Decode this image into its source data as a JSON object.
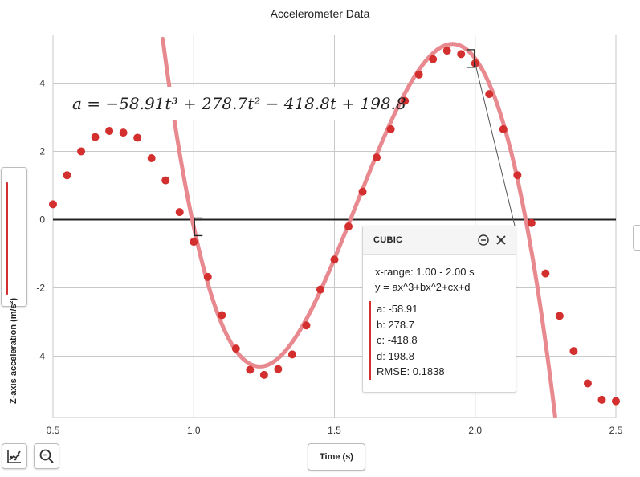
{
  "chart_title": "Accelerometer Data",
  "equation": "a = −58.91t³ + 278.7t² − 418.8t + 198.8",
  "y_axis_button_label": "Z-axis acceleration (m/s²)",
  "x_axis_button_label": "Time (s)",
  "toolbar": {
    "fit_icon": "graph-fit-icon",
    "zoom_icon": "zoom-icon"
  },
  "fit_panel": {
    "title": "CUBIC",
    "x_range": "x-range: 1.00 - 2.00 s",
    "formula": "y = ax^3+bx^2+cx+d",
    "params": [
      "a: -58.91",
      "b: 278.7",
      "c: -418.8",
      "d: 198.8",
      "RMSE: 0.1838"
    ]
  },
  "colors": {
    "points": "#d32f2f",
    "fit_curve": "#e8898f",
    "zero_line": "#222222",
    "grid": "#c8c8c8"
  },
  "chart_data": {
    "type": "scatter",
    "title": "Accelerometer Data",
    "xlabel": "Time (s)",
    "ylabel": "Z-axis acceleration (m/s²)",
    "xlim": [
      0.5,
      2.5
    ],
    "ylim": [
      -5.8,
      5.4
    ],
    "x_ticks": [
      "0.5",
      "1.0",
      "1.5",
      "2.0",
      "2.5"
    ],
    "y_ticks": [
      "-4",
      "-2",
      "0",
      "2",
      "4"
    ],
    "grid": true,
    "series": [
      {
        "x": [
          0.5,
          0.55,
          0.6,
          0.65,
          0.7,
          0.75,
          0.8,
          0.85,
          0.9,
          0.95,
          1.0,
          1.05,
          1.1,
          1.15,
          1.2,
          1.25,
          1.3,
          1.35,
          1.4,
          1.45,
          1.5,
          1.55,
          1.6,
          1.65,
          1.7,
          1.75,
          1.8,
          1.85,
          1.9,
          1.95,
          2.0,
          2.05,
          2.1,
          2.15,
          2.2,
          2.25,
          2.3,
          2.35,
          2.4,
          2.45,
          2.5
        ],
        "y": [
          0.45,
          1.3,
          2.0,
          2.42,
          2.6,
          2.55,
          2.4,
          1.8,
          1.15,
          0.22,
          -0.65,
          -1.68,
          -2.8,
          -3.78,
          -4.4,
          -4.55,
          -4.38,
          -3.95,
          -3.1,
          -2.05,
          -1.17,
          -0.2,
          0.82,
          1.82,
          2.65,
          3.48,
          4.25,
          4.7,
          4.95,
          4.85,
          4.58,
          3.68,
          2.65,
          1.3,
          -0.1,
          -1.58,
          -2.82,
          -3.85,
          -4.8,
          -5.28,
          -5.32
        ]
      }
    ],
    "fit": {
      "model": "cubic",
      "a": -58.91,
      "b": 278.7,
      "c": -418.8,
      "d": 198.8,
      "x_range": [
        1.0,
        2.0
      ]
    }
  }
}
